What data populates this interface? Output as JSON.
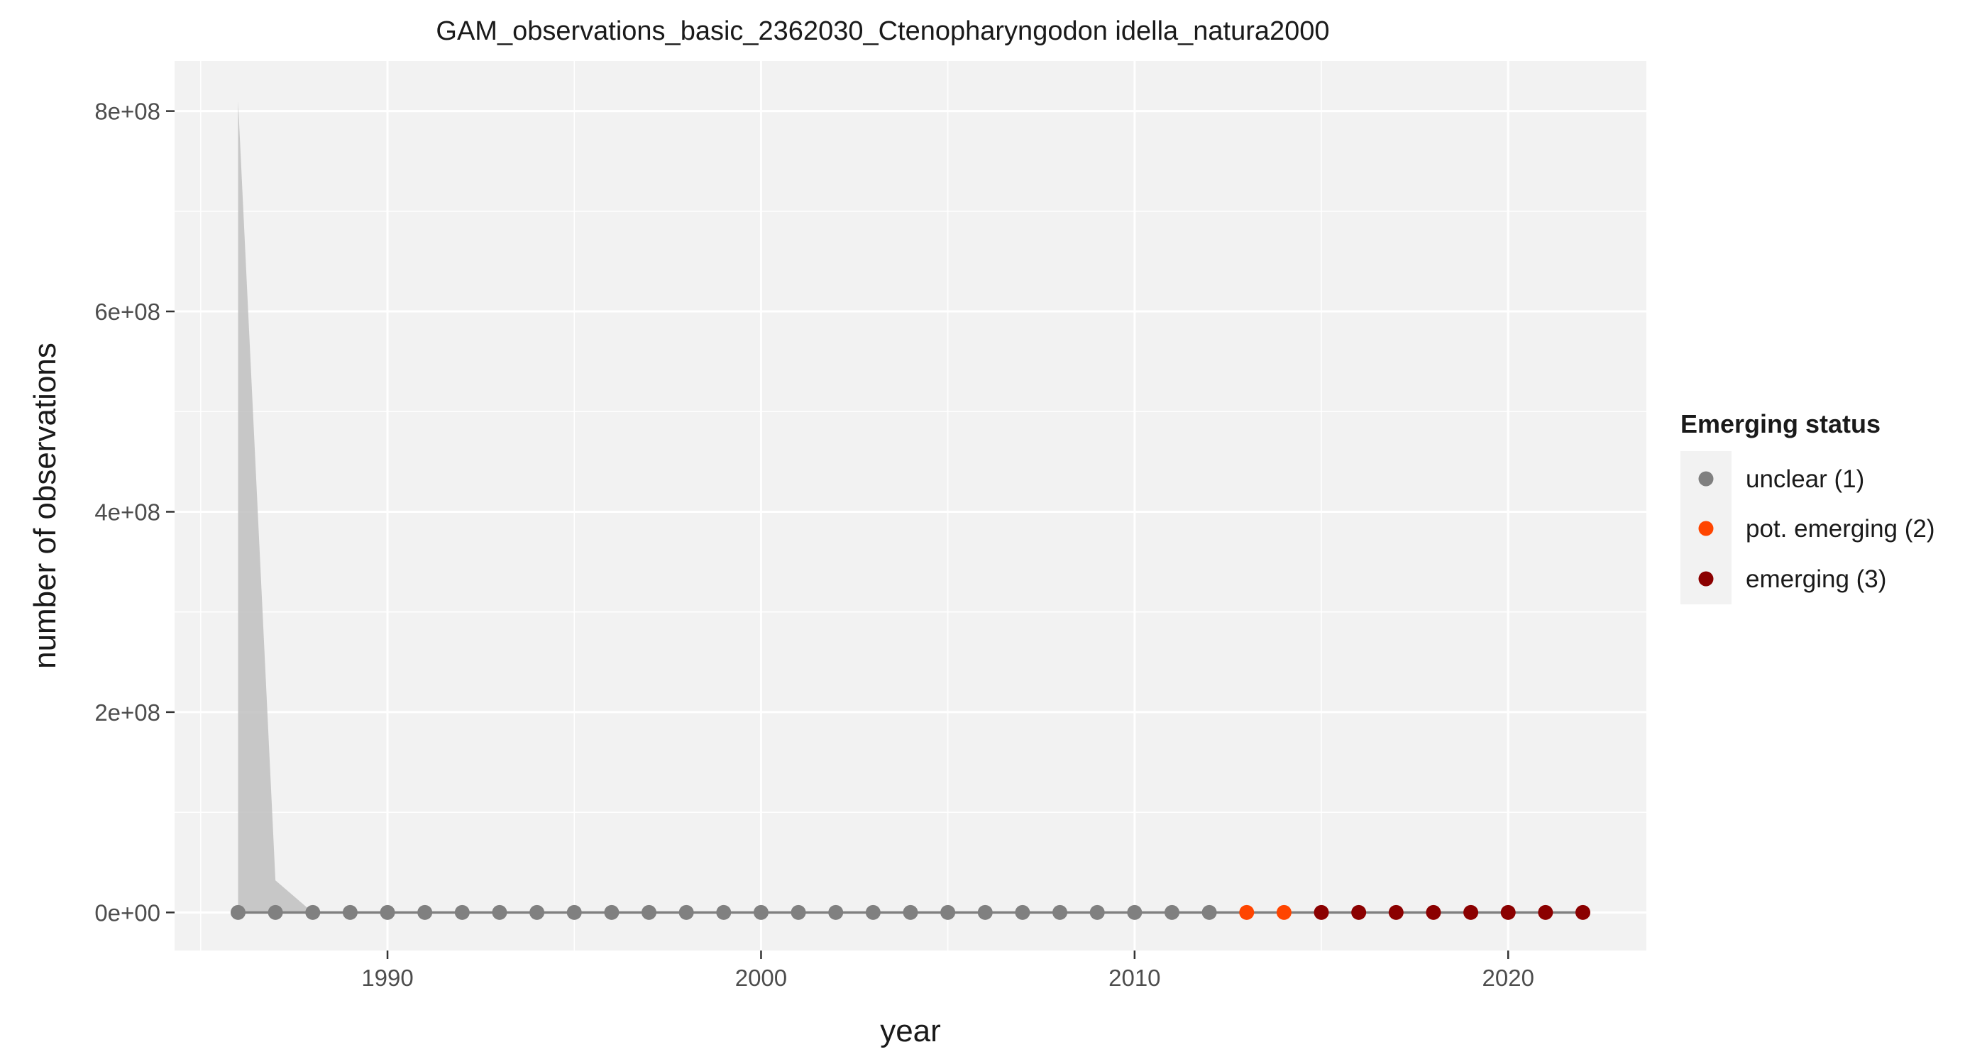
{
  "chart_data": {
    "type": "line",
    "title": "GAM_observations_basic_2362030_Ctenopharyngodon idella_natura2000",
    "xlabel": "year",
    "ylabel": "number of observations",
    "xlim": [
      1984.3,
      2023.7
    ],
    "ylim": [
      -38000000,
      850000000
    ],
    "x_ticks": [
      {
        "value": 1990,
        "label": "1990"
      },
      {
        "value": 2000,
        "label": "2000"
      },
      {
        "value": 2010,
        "label": "2010"
      },
      {
        "value": 2020,
        "label": "2020"
      }
    ],
    "x_minor_ticks": [
      1985,
      1995,
      2005,
      2015
    ],
    "y_ticks": [
      {
        "value": 0,
        "label": "0e+00"
      },
      {
        "value": 200000000,
        "label": "2e+08"
      },
      {
        "value": 400000000,
        "label": "4e+08"
      },
      {
        "value": 600000000,
        "label": "6e+08"
      },
      {
        "value": 800000000,
        "label": "8e+08"
      }
    ],
    "y_minor_ticks": [
      100000000,
      300000000,
      500000000,
      700000000
    ],
    "grid": true,
    "background_color": "#f2f2f2",
    "line_color": "#808080",
    "ribbon_color": "#bfbfbf",
    "legend": {
      "title": "Emerging status",
      "position": "right",
      "entries": [
        {
          "key": "1",
          "label": "unclear (1)",
          "color": "#808080"
        },
        {
          "key": "2",
          "label": "pot. emerging (2)",
          "color": "#ff4500"
        },
        {
          "key": "3",
          "label": "emerging (3)",
          "color": "#8b0000"
        }
      ]
    },
    "years": [
      1986,
      1987,
      1988,
      1989,
      1990,
      1991,
      1992,
      1993,
      1994,
      1995,
      1996,
      1997,
      1998,
      1999,
      2000,
      2001,
      2002,
      2003,
      2004,
      2005,
      2006,
      2007,
      2008,
      2009,
      2010,
      2011,
      2012,
      2013,
      2014,
      2015,
      2016,
      2017,
      2018,
      2019,
      2020,
      2021,
      2022
    ],
    "fit": [
      0,
      0,
      0,
      0,
      0,
      0,
      0,
      0,
      0,
      0,
      0,
      0,
      0,
      0,
      0,
      0,
      0,
      0,
      0,
      0,
      0,
      0,
      0,
      0,
      0,
      0,
      0,
      0,
      0,
      0,
      0,
      0,
      0,
      0,
      0,
      0,
      0
    ],
    "ribbon_upper": [
      810000000,
      32000000,
      0,
      0,
      0,
      0,
      0,
      0,
      0,
      0,
      0,
      0,
      0,
      0,
      0,
      0,
      0,
      0,
      0,
      0,
      0,
      0,
      0,
      0,
      0,
      0,
      0,
      0,
      0,
      0,
      0,
      0,
      0,
      0,
      0,
      0,
      0
    ],
    "status": [
      "1",
      "1",
      "1",
      "1",
      "1",
      "1",
      "1",
      "1",
      "1",
      "1",
      "1",
      "1",
      "1",
      "1",
      "1",
      "1",
      "1",
      "1",
      "1",
      "1",
      "1",
      "1",
      "1",
      "1",
      "1",
      "1",
      "1",
      "2",
      "2",
      "3",
      "3",
      "3",
      "3",
      "3",
      "3",
      "3",
      "3"
    ]
  }
}
